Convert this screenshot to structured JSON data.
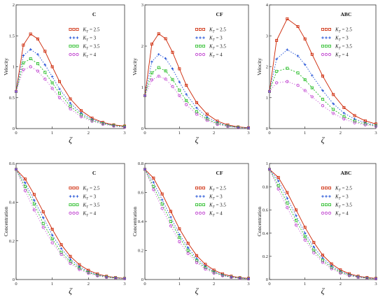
{
  "figure": {
    "legend_symbol": "K",
    "legend_subscript": "T",
    "xlabel": "ζ"
  },
  "chart_data": [
    {
      "type": "line",
      "title": "C",
      "ylabel": "Velocity",
      "xlabel": "ζ",
      "xlim": [
        0,
        3
      ],
      "ylim": [
        0,
        2
      ],
      "xticks": [
        "0",
        "1",
        "2",
        "3"
      ],
      "yticks": [
        "0",
        "0.5",
        "1",
        "1.5",
        "2"
      ],
      "series": [
        {
          "name": "= 2.5",
          "color": "#cc2200",
          "marker": "square",
          "x": [
            0,
            0.2,
            0.4,
            0.6,
            0.8,
            1.0,
            1.2,
            1.5,
            1.8,
            2.1,
            2.4,
            2.7,
            3.0
          ],
          "y": [
            0.6,
            1.35,
            1.53,
            1.45,
            1.25,
            1.0,
            0.76,
            0.48,
            0.29,
            0.17,
            0.1,
            0.06,
            0.04
          ]
        },
        {
          "name": "= 3",
          "color": "#1f4fd6",
          "marker": "plus",
          "x": [
            0,
            0.2,
            0.4,
            0.6,
            0.8,
            1.0,
            1.2,
            1.5,
            1.8,
            2.1,
            2.4,
            2.7,
            3.0
          ],
          "y": [
            0.6,
            1.18,
            1.28,
            1.2,
            1.03,
            0.84,
            0.64,
            0.41,
            0.25,
            0.15,
            0.09,
            0.05,
            0.03
          ]
        },
        {
          "name": "= 3.5",
          "color": "#22bb22",
          "marker": "square",
          "x": [
            0,
            0.2,
            0.4,
            0.6,
            0.8,
            1.0,
            1.2,
            1.5,
            1.8,
            2.1,
            2.4,
            2.7,
            3.0
          ],
          "y": [
            0.6,
            1.06,
            1.13,
            1.05,
            0.91,
            0.74,
            0.57,
            0.36,
            0.22,
            0.13,
            0.08,
            0.05,
            0.03
          ]
        },
        {
          "name": "= 4",
          "color": "#bb33cc",
          "marker": "circle",
          "x": [
            0,
            0.2,
            0.4,
            0.6,
            0.8,
            1.0,
            1.2,
            1.5,
            1.8,
            2.1,
            2.4,
            2.7,
            3.0
          ],
          "y": [
            0.6,
            0.95,
            1.0,
            0.93,
            0.8,
            0.65,
            0.5,
            0.32,
            0.19,
            0.12,
            0.07,
            0.04,
            0.02
          ]
        }
      ]
    },
    {
      "type": "line",
      "title": "CF",
      "ylabel": "Velocity",
      "xlabel": "ζ",
      "xlim": [
        0,
        3
      ],
      "ylim": [
        0,
        3
      ],
      "xticks": [
        "0",
        "1",
        "2",
        "3"
      ],
      "yticks": [
        "0",
        "1",
        "2",
        "3"
      ],
      "series": [
        {
          "name": "= 2.5",
          "color": "#cc2200",
          "marker": "square",
          "x": [
            0,
            0.2,
            0.4,
            0.6,
            0.8,
            1.0,
            1.2,
            1.5,
            1.8,
            2.1,
            2.4,
            2.7,
            3.0
          ],
          "y": [
            0.8,
            2.05,
            2.3,
            2.18,
            1.85,
            1.45,
            1.05,
            0.63,
            0.35,
            0.18,
            0.09,
            0.04,
            0.02
          ]
        },
        {
          "name": "= 3",
          "color": "#1f4fd6",
          "marker": "plus",
          "x": [
            0,
            0.2,
            0.4,
            0.6,
            0.8,
            1.0,
            1.2,
            1.5,
            1.8,
            2.1,
            2.4,
            2.7,
            3.0
          ],
          "y": [
            0.8,
            1.62,
            1.8,
            1.7,
            1.45,
            1.13,
            0.83,
            0.5,
            0.28,
            0.15,
            0.07,
            0.03,
            0.02
          ]
        },
        {
          "name": "= 3.5",
          "color": "#22bb22",
          "marker": "square",
          "x": [
            0,
            0.2,
            0.4,
            0.6,
            0.8,
            1.0,
            1.2,
            1.5,
            1.8,
            2.1,
            2.4,
            2.7,
            3.0
          ],
          "y": [
            0.8,
            1.35,
            1.48,
            1.4,
            1.19,
            0.93,
            0.68,
            0.41,
            0.23,
            0.12,
            0.06,
            0.03,
            0.01
          ]
        },
        {
          "name": "= 4",
          "color": "#bb33cc",
          "marker": "circle",
          "x": [
            0,
            0.2,
            0.4,
            0.6,
            0.8,
            1.0,
            1.2,
            1.5,
            1.8,
            2.1,
            2.4,
            2.7,
            3.0
          ],
          "y": [
            0.8,
            1.18,
            1.27,
            1.2,
            1.02,
            0.8,
            0.58,
            0.35,
            0.2,
            0.1,
            0.05,
            0.02,
            0.01
          ]
        }
      ]
    },
    {
      "type": "line",
      "title": "ABC",
      "ylabel": "Velocity",
      "xlabel": "ζ",
      "xlim": [
        0,
        3
      ],
      "ylim": [
        0,
        4
      ],
      "xticks": [
        "0",
        "1",
        "2",
        "3"
      ],
      "yticks": [
        "0",
        "1",
        "2",
        "3",
        "4"
      ],
      "series": [
        {
          "name": "= 2.5",
          "color": "#cc2200",
          "marker": "square",
          "x": [
            0,
            0.2,
            0.5,
            0.8,
            1.0,
            1.2,
            1.5,
            1.8,
            2.1,
            2.4,
            2.7,
            3.0
          ],
          "y": [
            1.2,
            2.85,
            3.55,
            3.3,
            2.9,
            2.4,
            1.7,
            1.1,
            0.68,
            0.42,
            0.25,
            0.15
          ]
        },
        {
          "name": "= 3",
          "color": "#1f4fd6",
          "marker": "plus",
          "x": [
            0,
            0.2,
            0.5,
            0.8,
            1.0,
            1.2,
            1.5,
            1.8,
            2.1,
            2.4,
            2.7,
            3.0
          ],
          "y": [
            1.2,
            2.25,
            2.55,
            2.35,
            2.07,
            1.72,
            1.23,
            0.8,
            0.5,
            0.31,
            0.19,
            0.11
          ]
        },
        {
          "name": "= 3.5",
          "color": "#22bb22",
          "marker": "square",
          "x": [
            0,
            0.2,
            0.5,
            0.8,
            1.0,
            1.2,
            1.5,
            1.8,
            2.1,
            2.4,
            2.7,
            3.0
          ],
          "y": [
            1.2,
            1.85,
            1.95,
            1.8,
            1.58,
            1.32,
            0.95,
            0.62,
            0.39,
            0.24,
            0.15,
            0.09
          ]
        },
        {
          "name": "= 4",
          "color": "#bb33cc",
          "marker": "circle",
          "x": [
            0,
            0.2,
            0.5,
            0.8,
            1.0,
            1.2,
            1.5,
            1.8,
            2.1,
            2.4,
            2.7,
            3.0
          ],
          "y": [
            1.2,
            1.48,
            1.52,
            1.4,
            1.23,
            1.03,
            0.74,
            0.49,
            0.31,
            0.19,
            0.12,
            0.07
          ]
        }
      ]
    },
    {
      "type": "line",
      "title": "C",
      "ylabel": "Concentration",
      "xlabel": "ζ",
      "xlim": [
        0,
        3
      ],
      "ylim": [
        0,
        0.6
      ],
      "xticks": [
        "0",
        "1",
        "2",
        "3"
      ],
      "yticks": [
        "0",
        "0.2",
        "0.4",
        "0.6"
      ],
      "series": [
        {
          "name": "= 2.5",
          "color": "#cc2200",
          "marker": "square",
          "x": [
            0,
            0.25,
            0.5,
            0.75,
            1.0,
            1.25,
            1.5,
            1.75,
            2.0,
            2.25,
            2.5,
            2.75,
            3.0
          ],
          "y": [
            0.57,
            0.52,
            0.44,
            0.35,
            0.26,
            0.18,
            0.12,
            0.077,
            0.048,
            0.029,
            0.017,
            0.01,
            0.006
          ]
        },
        {
          "name": "= 3",
          "color": "#1f4fd6",
          "marker": "plus",
          "x": [
            0,
            0.25,
            0.5,
            0.75,
            1.0,
            1.25,
            1.5,
            1.75,
            2.0,
            2.25,
            2.5,
            2.75,
            3.0
          ],
          "y": [
            0.57,
            0.5,
            0.41,
            0.32,
            0.23,
            0.16,
            0.105,
            0.067,
            0.041,
            0.025,
            0.015,
            0.009,
            0.005
          ]
        },
        {
          "name": "= 3.5",
          "color": "#22bb22",
          "marker": "square",
          "x": [
            0,
            0.25,
            0.5,
            0.75,
            1.0,
            1.25,
            1.5,
            1.75,
            2.0,
            2.25,
            2.5,
            2.75,
            3.0
          ],
          "y": [
            0.57,
            0.48,
            0.39,
            0.29,
            0.21,
            0.14,
            0.093,
            0.059,
            0.036,
            0.022,
            0.013,
            0.008,
            0.005
          ]
        },
        {
          "name": "= 4",
          "color": "#bb33cc",
          "marker": "circle",
          "x": [
            0,
            0.25,
            0.5,
            0.75,
            1.0,
            1.25,
            1.5,
            1.75,
            2.0,
            2.25,
            2.5,
            2.75,
            3.0
          ],
          "y": [
            0.57,
            0.46,
            0.36,
            0.27,
            0.19,
            0.13,
            0.083,
            0.052,
            0.032,
            0.019,
            0.011,
            0.007,
            0.004
          ]
        }
      ]
    },
    {
      "type": "line",
      "title": "CF",
      "ylabel": "Concentration",
      "xlabel": "ζ",
      "xlim": [
        0,
        3
      ],
      "ylim": [
        0,
        0.8
      ],
      "xticks": [
        "0",
        "1",
        "2",
        "3"
      ],
      "yticks": [
        "0",
        "0.2",
        "0.4",
        "0.6",
        "0.8"
      ],
      "series": [
        {
          "name": "= 2.5",
          "color": "#cc2200",
          "marker": "square",
          "x": [
            0,
            0.25,
            0.5,
            0.75,
            1.0,
            1.25,
            1.5,
            1.75,
            2.0,
            2.25,
            2.5,
            2.75,
            3.0
          ],
          "y": [
            0.76,
            0.7,
            0.59,
            0.47,
            0.35,
            0.25,
            0.165,
            0.105,
            0.065,
            0.039,
            0.023,
            0.013,
            0.008
          ]
        },
        {
          "name": "= 3",
          "color": "#1f4fd6",
          "marker": "plus",
          "x": [
            0,
            0.25,
            0.5,
            0.75,
            1.0,
            1.25,
            1.5,
            1.75,
            2.0,
            2.25,
            2.5,
            2.75,
            3.0
          ],
          "y": [
            0.76,
            0.67,
            0.55,
            0.43,
            0.31,
            0.22,
            0.145,
            0.092,
            0.056,
            0.033,
            0.019,
            0.011,
            0.006
          ]
        },
        {
          "name": "= 3.5",
          "color": "#22bb22",
          "marker": "square",
          "x": [
            0,
            0.25,
            0.5,
            0.75,
            1.0,
            1.25,
            1.5,
            1.75,
            2.0,
            2.25,
            2.5,
            2.75,
            3.0
          ],
          "y": [
            0.76,
            0.64,
            0.52,
            0.4,
            0.29,
            0.2,
            0.13,
            0.082,
            0.05,
            0.029,
            0.017,
            0.01,
            0.005
          ]
        },
        {
          "name": "= 4",
          "color": "#bb33cc",
          "marker": "circle",
          "x": [
            0,
            0.25,
            0.5,
            0.75,
            1.0,
            1.25,
            1.5,
            1.75,
            2.0,
            2.25,
            2.5,
            2.75,
            3.0
          ],
          "y": [
            0.76,
            0.62,
            0.49,
            0.37,
            0.26,
            0.18,
            0.117,
            0.073,
            0.044,
            0.026,
            0.015,
            0.008,
            0.004
          ]
        }
      ]
    },
    {
      "type": "line",
      "title": "ABC",
      "ylabel": "Concentration",
      "xlabel": "ζ",
      "xlim": [
        0,
        3
      ],
      "ylim": [
        0,
        1
      ],
      "xticks": [
        "0",
        "1",
        "2",
        "3"
      ],
      "yticks": [
        "0",
        "0.2",
        "0.4",
        "0.6",
        "0.8",
        "1"
      ],
      "series": [
        {
          "name": "= 2.5",
          "color": "#cc2200",
          "marker": "square",
          "x": [
            0,
            0.25,
            0.5,
            0.75,
            1.0,
            1.25,
            1.5,
            1.75,
            2.0,
            2.25,
            2.5,
            2.75,
            3.0
          ],
          "y": [
            0.95,
            0.88,
            0.75,
            0.6,
            0.45,
            0.32,
            0.21,
            0.135,
            0.083,
            0.05,
            0.029,
            0.017,
            0.01
          ]
        },
        {
          "name": "= 3",
          "color": "#1f4fd6",
          "marker": "plus",
          "x": [
            0,
            0.25,
            0.5,
            0.75,
            1.0,
            1.25,
            1.5,
            1.75,
            2.0,
            2.25,
            2.5,
            2.75,
            3.0
          ],
          "y": [
            0.95,
            0.85,
            0.7,
            0.55,
            0.4,
            0.28,
            0.185,
            0.118,
            0.072,
            0.043,
            0.025,
            0.014,
            0.008
          ]
        },
        {
          "name": "= 3.5",
          "color": "#22bb22",
          "marker": "square",
          "x": [
            0,
            0.25,
            0.5,
            0.75,
            1.0,
            1.25,
            1.5,
            1.75,
            2.0,
            2.25,
            2.5,
            2.75,
            3.0
          ],
          "y": [
            0.95,
            0.81,
            0.66,
            0.51,
            0.37,
            0.25,
            0.165,
            0.104,
            0.063,
            0.037,
            0.021,
            0.012,
            0.007
          ]
        },
        {
          "name": "= 4",
          "color": "#bb33cc",
          "marker": "circle",
          "x": [
            0,
            0.25,
            0.5,
            0.75,
            1.0,
            1.25,
            1.5,
            1.75,
            2.0,
            2.25,
            2.5,
            2.75,
            3.0
          ],
          "y": [
            0.95,
            0.78,
            0.62,
            0.47,
            0.34,
            0.23,
            0.148,
            0.093,
            0.056,
            0.033,
            0.019,
            0.011,
            0.006
          ]
        }
      ]
    }
  ]
}
